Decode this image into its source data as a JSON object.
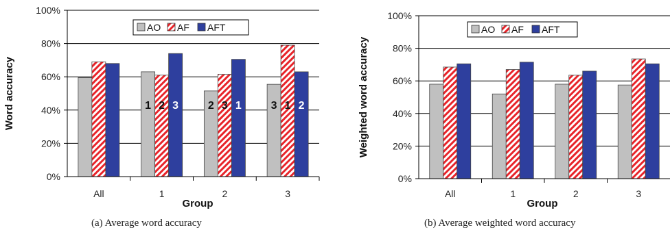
{
  "chart_data": [
    {
      "type": "bar",
      "caption": "(a)  Average word accuracy",
      "xlabel": "Group",
      "ylabel": "Word accuracy",
      "categories": [
        "All",
        "1",
        "2",
        "3"
      ],
      "ylim": [
        0,
        100
      ],
      "yticks": [
        "0%",
        "20%",
        "40%",
        "60%",
        "80%",
        "100%"
      ],
      "grid": true,
      "legend_position": "top",
      "series": [
        {
          "name": "AO",
          "values": [
            59.5,
            63,
            51.5,
            55.5
          ],
          "labels": [
            "",
            "1",
            "2",
            "3"
          ]
        },
        {
          "name": "AF",
          "values": [
            69,
            61,
            61.5,
            79
          ],
          "labels": [
            "",
            "2",
            "3",
            "1"
          ]
        },
        {
          "name": "AFT",
          "values": [
            68,
            74,
            70.5,
            63
          ],
          "labels": [
            "",
            "3",
            "1",
            "2"
          ]
        }
      ]
    },
    {
      "type": "bar",
      "caption": "(b)  Average weighted word accuracy",
      "xlabel": "Group",
      "ylabel": "Weighted word accuracy",
      "categories": [
        "All",
        "1",
        "2",
        "3"
      ],
      "ylim": [
        0,
        100
      ],
      "yticks": [
        "0%",
        "20%",
        "40%",
        "60%",
        "80%",
        "100%"
      ],
      "grid": true,
      "legend_position": "top",
      "series": [
        {
          "name": "AO",
          "values": [
            58,
            52,
            58,
            57.5
          ],
          "labels": [
            "",
            "",
            "",
            ""
          ]
        },
        {
          "name": "AF",
          "values": [
            68.5,
            67,
            63.5,
            73.5
          ],
          "labels": [
            "",
            "",
            "",
            ""
          ]
        },
        {
          "name": "AFT",
          "values": [
            70.5,
            71.5,
            66,
            70.5
          ],
          "labels": [
            "",
            "",
            "",
            ""
          ]
        }
      ]
    }
  ],
  "colors": {
    "AO": "#c0c0c0",
    "AF_stripe": "#e8242a",
    "AFT": "#2e3f9e"
  }
}
